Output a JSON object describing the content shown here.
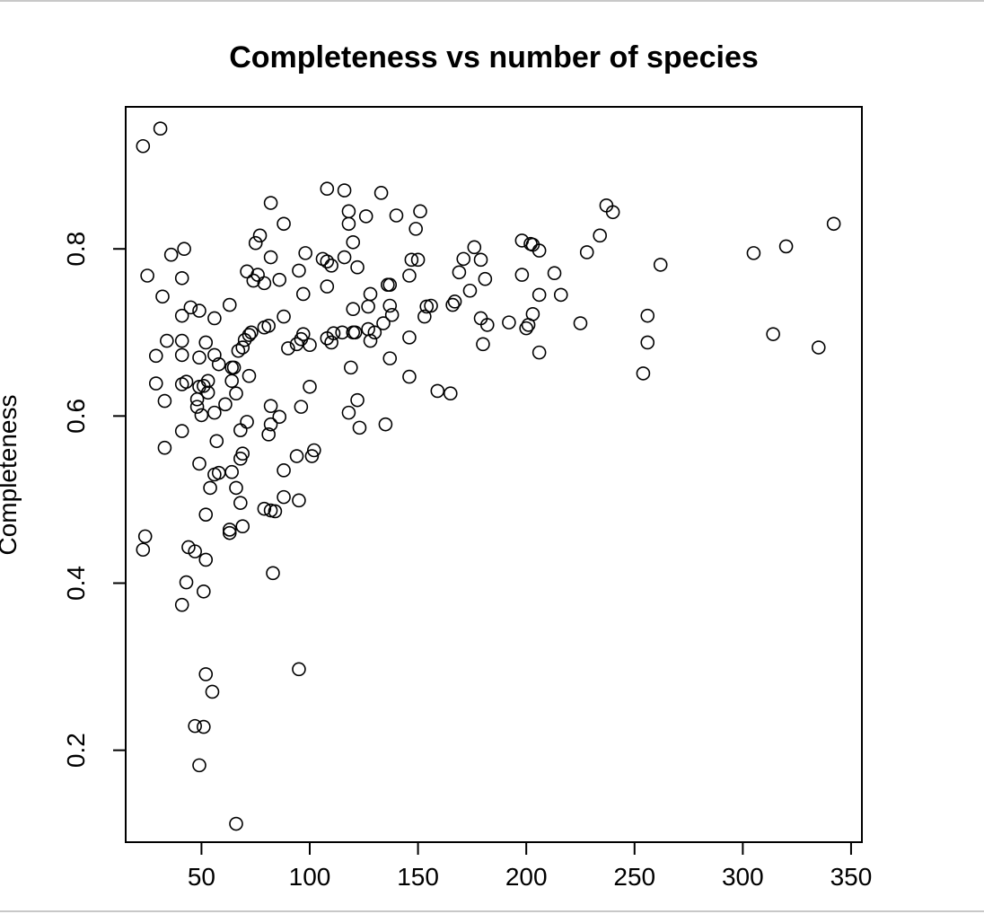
{
  "chart_data": {
    "type": "scatter",
    "title": "Completeness vs number of species",
    "xlabel": "",
    "ylabel": "Completeness",
    "xlim": [
      15,
      355
    ],
    "ylim": [
      0.09,
      0.97
    ],
    "xticks": [
      50,
      100,
      150,
      200,
      250,
      300,
      350
    ],
    "yticks": [
      0.2,
      0.4,
      0.6,
      0.8
    ],
    "xtick_labels": [
      "50",
      "100",
      "150",
      "200",
      "250",
      "300",
      "350"
    ],
    "ytick_labels": [
      "0.2",
      "0.4",
      "0.6",
      "0.8"
    ],
    "grid": false,
    "legend": "none",
    "marker": "open-circle",
    "colors": {
      "marker": "#000000",
      "axis": "#000000",
      "background": "#ffffff"
    },
    "points": [
      [
        23,
        0.923
      ],
      [
        31,
        0.944
      ],
      [
        25,
        0.768
      ],
      [
        36,
        0.793
      ],
      [
        42,
        0.8
      ],
      [
        41,
        0.765
      ],
      [
        32,
        0.743
      ],
      [
        29,
        0.672
      ],
      [
        34,
        0.69
      ],
      [
        29,
        0.639
      ],
      [
        33,
        0.618
      ],
      [
        33,
        0.562
      ],
      [
        24,
        0.456
      ],
      [
        23,
        0.44
      ],
      [
        41,
        0.72
      ],
      [
        45,
        0.73
      ],
      [
        49,
        0.726
      ],
      [
        56,
        0.717
      ],
      [
        41,
        0.69
      ],
      [
        41,
        0.673
      ],
      [
        52,
        0.688
      ],
      [
        49,
        0.67
      ],
      [
        56,
        0.673
      ],
      [
        58,
        0.662
      ],
      [
        43,
        0.641
      ],
      [
        41,
        0.638
      ],
      [
        49,
        0.635
      ],
      [
        51,
        0.636
      ],
      [
        53,
        0.642
      ],
      [
        48,
        0.62
      ],
      [
        48,
        0.611
      ],
      [
        53,
        0.628
      ],
      [
        50,
        0.601
      ],
      [
        56,
        0.604
      ],
      [
        41,
        0.582
      ],
      [
        57,
        0.57
      ],
      [
        49,
        0.543
      ],
      [
        58,
        0.532
      ],
      [
        56,
        0.53
      ],
      [
        54,
        0.514
      ],
      [
        52,
        0.482
      ],
      [
        44,
        0.443
      ],
      [
        47,
        0.438
      ],
      [
        52,
        0.428
      ],
      [
        43,
        0.401
      ],
      [
        41,
        0.374
      ],
      [
        51,
        0.39
      ],
      [
        52,
        0.291
      ],
      [
        55,
        0.27
      ],
      [
        47,
        0.229
      ],
      [
        51,
        0.228
      ],
      [
        49,
        0.182
      ],
      [
        63,
        0.733
      ],
      [
        75,
        0.807
      ],
      [
        77,
        0.816
      ],
      [
        71,
        0.773
      ],
      [
        74,
        0.762
      ],
      [
        76,
        0.769
      ],
      [
        79,
        0.759
      ],
      [
        82,
        0.79
      ],
      [
        82,
        0.855
      ],
      [
        73,
        0.7
      ],
      [
        72,
        0.697
      ],
      [
        70,
        0.691
      ],
      [
        67,
        0.678
      ],
      [
        69,
        0.682
      ],
      [
        79,
        0.706
      ],
      [
        81,
        0.708
      ],
      [
        64,
        0.658
      ],
      [
        65,
        0.658
      ],
      [
        64,
        0.642
      ],
      [
        66,
        0.627
      ],
      [
        61,
        0.614
      ],
      [
        72,
        0.648
      ],
      [
        68,
        0.583
      ],
      [
        71,
        0.593
      ],
      [
        69,
        0.555
      ],
      [
        68,
        0.549
      ],
      [
        64,
        0.533
      ],
      [
        66,
        0.514
      ],
      [
        68,
        0.496
      ],
      [
        79,
        0.489
      ],
      [
        82,
        0.487
      ],
      [
        84,
        0.486
      ],
      [
        69,
        0.468
      ],
      [
        63,
        0.464
      ],
      [
        63,
        0.46
      ],
      [
        83,
        0.412
      ],
      [
        66,
        0.112
      ],
      [
        88,
        0.83
      ],
      [
        86,
        0.763
      ],
      [
        88,
        0.719
      ],
      [
        90,
        0.681
      ],
      [
        94,
        0.686
      ],
      [
        96,
        0.692
      ],
      [
        97,
        0.698
      ],
      [
        98,
        0.795
      ],
      [
        95,
        0.774
      ],
      [
        97,
        0.746
      ],
      [
        100,
        0.685
      ],
      [
        82,
        0.612
      ],
      [
        82,
        0.59
      ],
      [
        81,
        0.578
      ],
      [
        86,
        0.599
      ],
      [
        88,
        0.535
      ],
      [
        88,
        0.503
      ],
      [
        95,
        0.499
      ],
      [
        94,
        0.552
      ],
      [
        96,
        0.611
      ],
      [
        100,
        0.635
      ],
      [
        101,
        0.552
      ],
      [
        102,
        0.559
      ],
      [
        95,
        0.297
      ],
      [
        108,
        0.872
      ],
      [
        116,
        0.87
      ],
      [
        118,
        0.845
      ],
      [
        118,
        0.83
      ],
      [
        120,
        0.808
      ],
      [
        106,
        0.788
      ],
      [
        108,
        0.785
      ],
      [
        110,
        0.78
      ],
      [
        108,
        0.755
      ],
      [
        116,
        0.79
      ],
      [
        122,
        0.778
      ],
      [
        126,
        0.839
      ],
      [
        133,
        0.867
      ],
      [
        140,
        0.84
      ],
      [
        149,
        0.824
      ],
      [
        151,
        0.845
      ],
      [
        147,
        0.787
      ],
      [
        150,
        0.787
      ],
      [
        146,
        0.768
      ],
      [
        136,
        0.757
      ],
      [
        137,
        0.757
      ],
      [
        128,
        0.746
      ],
      [
        120,
        0.728
      ],
      [
        127,
        0.731
      ],
      [
        137,
        0.732
      ],
      [
        138,
        0.721
      ],
      [
        134,
        0.711
      ],
      [
        108,
        0.693
      ],
      [
        111,
        0.699
      ],
      [
        110,
        0.688
      ],
      [
        115,
        0.7
      ],
      [
        120,
        0.7
      ],
      [
        121,
        0.7
      ],
      [
        127,
        0.704
      ],
      [
        130,
        0.7
      ],
      [
        128,
        0.69
      ],
      [
        119,
        0.658
      ],
      [
        137,
        0.669
      ],
      [
        146,
        0.694
      ],
      [
        146,
        0.647
      ],
      [
        118,
        0.604
      ],
      [
        122,
        0.619
      ],
      [
        123,
        0.586
      ],
      [
        135,
        0.59
      ],
      [
        159,
        0.63
      ],
      [
        165,
        0.627
      ],
      [
        154,
        0.731
      ],
      [
        156,
        0.732
      ],
      [
        153,
        0.719
      ],
      [
        166,
        0.733
      ],
      [
        167,
        0.737
      ],
      [
        169,
        0.772
      ],
      [
        171,
        0.788
      ],
      [
        176,
        0.802
      ],
      [
        179,
        0.787
      ],
      [
        174,
        0.75
      ],
      [
        181,
        0.764
      ],
      [
        179,
        0.717
      ],
      [
        182,
        0.709
      ],
      [
        180,
        0.686
      ],
      [
        192,
        0.712
      ],
      [
        198,
        0.81
      ],
      [
        202,
        0.806
      ],
      [
        203,
        0.805
      ],
      [
        206,
        0.798
      ],
      [
        198,
        0.769
      ],
      [
        213,
        0.771
      ],
      [
        206,
        0.745
      ],
      [
        216,
        0.745
      ],
      [
        203,
        0.722
      ],
      [
        201,
        0.709
      ],
      [
        200,
        0.705
      ],
      [
        206,
        0.676
      ],
      [
        225,
        0.711
      ],
      [
        228,
        0.796
      ],
      [
        234,
        0.816
      ],
      [
        237,
        0.852
      ],
      [
        240,
        0.844
      ],
      [
        262,
        0.781
      ],
      [
        256,
        0.72
      ],
      [
        256,
        0.688
      ],
      [
        254,
        0.651
      ],
      [
        305,
        0.795
      ],
      [
        320,
        0.803
      ],
      [
        314,
        0.698
      ],
      [
        335,
        0.682
      ],
      [
        342,
        0.83
      ]
    ]
  }
}
